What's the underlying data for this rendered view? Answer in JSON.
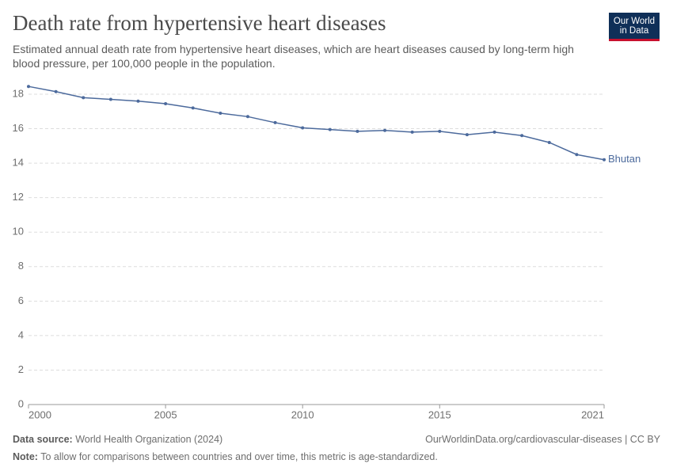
{
  "chart_data": {
    "type": "line",
    "title": "Death rate from hypertensive heart diseases",
    "subtitle": "Estimated annual death rate from hypertensive heart diseases, which are heart diseases caused by long-term high blood pressure, per 100,000 people in the population.",
    "logo": "Our World in Data",
    "source_label": "Data source:",
    "source": "World Health Organization (2024)",
    "url": "OurWorldinData.org/cardiovascular-diseases | CC BY",
    "note_label": "Note:",
    "note": "To allow for comparisons between countries and over time, this metric is age-standardized.",
    "x": [
      2000,
      2001,
      2002,
      2003,
      2004,
      2005,
      2006,
      2007,
      2008,
      2009,
      2010,
      2011,
      2012,
      2013,
      2014,
      2015,
      2016,
      2017,
      2018,
      2019,
      2020,
      2021
    ],
    "series": [
      {
        "name": "Bhutan",
        "color": "#4c6a9c",
        "values": [
          18.45,
          18.15,
          17.8,
          17.7,
          17.6,
          17.45,
          17.2,
          16.9,
          16.7,
          16.35,
          16.05,
          15.95,
          15.85,
          15.9,
          15.8,
          15.85,
          15.65,
          15.8,
          15.6,
          15.2,
          14.5,
          14.2
        ]
      }
    ],
    "xlim": [
      2000,
      2021
    ],
    "xticks": [
      2000,
      2005,
      2010,
      2015,
      2021
    ],
    "ylim": [
      0,
      18
    ],
    "yticks": [
      0,
      2,
      4,
      6,
      8,
      10,
      12,
      14,
      16,
      18
    ],
    "grid": true
  }
}
